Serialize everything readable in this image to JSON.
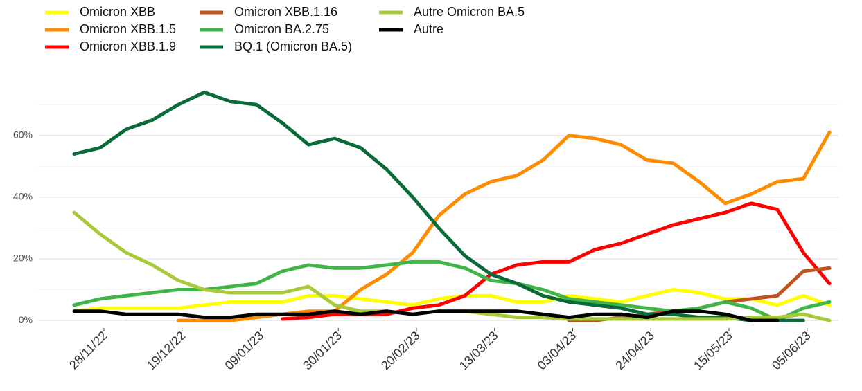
{
  "chart_data": {
    "type": "line",
    "x": [
      "20/11/22",
      "27/11/22",
      "04/12/22",
      "11/12/22",
      "18/12/22",
      "25/12/22",
      "01/01/23",
      "08/01/23",
      "15/01/23",
      "22/01/23",
      "29/01/23",
      "05/02/23",
      "12/02/23",
      "19/02/23",
      "26/02/23",
      "05/03/23",
      "12/03/23",
      "19/03/23",
      "26/03/23",
      "02/04/23",
      "09/04/23",
      "16/04/23",
      "23/04/23",
      "30/04/23",
      "07/05/23",
      "14/05/23",
      "21/05/23",
      "28/05/23",
      "04/06/23",
      "11/06/23"
    ],
    "series": [
      {
        "name": "Omicron XBB",
        "color": "#ffff00",
        "values": [
          3,
          4,
          4,
          4,
          4,
          5,
          6,
          6,
          6,
          8,
          8,
          7,
          6,
          5,
          7,
          8,
          8,
          6,
          6,
          8,
          7,
          6,
          8,
          10,
          9,
          7,
          7,
          5,
          8,
          5
        ]
      },
      {
        "name": "Omicron XBB.1.5",
        "color": "#ff8c00",
        "values": [
          null,
          null,
          null,
          null,
          0,
          0,
          0,
          1,
          2,
          3,
          3,
          10,
          15,
          22,
          34,
          41,
          45,
          47,
          52,
          60,
          59,
          57,
          52,
          51,
          45,
          38,
          41,
          45,
          46,
          61
        ]
      },
      {
        "name": "Omicron XBB.1.9",
        "color": "#ff0000",
        "values": [
          null,
          null,
          null,
          null,
          null,
          null,
          null,
          null,
          0.5,
          1,
          2,
          2,
          2,
          4,
          5,
          8,
          15,
          18,
          19,
          19,
          23,
          25,
          28,
          31,
          33,
          35,
          38,
          36,
          22,
          12
        ]
      },
      {
        "name": "Omicron XBB.1.16",
        "color": "#c0521e",
        "values": [
          null,
          null,
          null,
          null,
          null,
          null,
          null,
          null,
          null,
          null,
          null,
          null,
          null,
          null,
          null,
          null,
          null,
          null,
          null,
          0,
          0,
          1,
          2,
          3,
          4,
          6,
          7,
          8,
          16,
          17
        ]
      },
      {
        "name": "Omicron BA.2.75",
        "color": "#41b54a",
        "values": [
          5,
          7,
          8,
          9,
          10,
          10,
          11,
          12,
          16,
          18,
          17,
          17,
          18,
          19,
          19,
          17,
          13,
          12,
          10,
          7,
          6,
          5,
          4,
          3,
          4,
          6,
          4,
          0,
          4,
          6
        ]
      },
      {
        "name": "BQ.1 (Omicron BA.5)",
        "color": "#0b6b38",
        "values": [
          54,
          56,
          62,
          65,
          70,
          74,
          71,
          70,
          64,
          57,
          59,
          56,
          49,
          40,
          30,
          21,
          15,
          12,
          8,
          6,
          5,
          4,
          2,
          2,
          1,
          1,
          0,
          0,
          0,
          null
        ]
      },
      {
        "name": "Autre Omicron BA.5",
        "color": "#a8c93a",
        "values": [
          35,
          28,
          22,
          18,
          13,
          10,
          9,
          9,
          9,
          11,
          5,
          3,
          3,
          2,
          3,
          3,
          2,
          1,
          1,
          0.5,
          0.5,
          0.5,
          0.5,
          0.5,
          0.5,
          0.5,
          1,
          1,
          2,
          0
        ]
      },
      {
        "name": "Autre",
        "color": "#000000",
        "values": [
          3,
          3,
          2,
          2,
          2,
          1,
          1,
          2,
          2,
          2,
          3,
          2,
          3,
          2,
          3,
          3,
          3,
          3,
          2,
          1,
          2,
          2,
          1,
          3,
          3,
          2,
          0,
          0,
          null,
          null
        ]
      }
    ],
    "xlim": [
      "20/11/22",
      "11/06/23"
    ],
    "xticks": [
      "28/11/22",
      "19/12/22",
      "09/01/23",
      "30/01/23",
      "20/02/23",
      "13/03/23",
      "03/04/23",
      "24/04/23",
      "15/05/23",
      "05/06/23"
    ],
    "ylim": [
      -2,
      77
    ],
    "yticks": [
      {
        "value": 0,
        "label": "0%"
      },
      {
        "value": 20,
        "label": "20%"
      },
      {
        "value": 40,
        "label": "40%"
      },
      {
        "value": 60,
        "label": "60%"
      }
    ],
    "minor_yticks": [
      10,
      30,
      50,
      70
    ],
    "grid": true,
    "legend": "top-left"
  }
}
